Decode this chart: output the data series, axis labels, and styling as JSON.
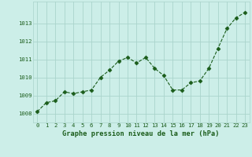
{
  "x": [
    0,
    1,
    2,
    3,
    4,
    5,
    6,
    7,
    8,
    9,
    10,
    11,
    12,
    13,
    14,
    15,
    16,
    17,
    18,
    19,
    20,
    21,
    22,
    23
  ],
  "y": [
    1008.1,
    1008.6,
    1008.7,
    1009.2,
    1009.1,
    1009.2,
    1009.3,
    1010.0,
    1010.4,
    1010.9,
    1011.1,
    1010.8,
    1011.1,
    1010.5,
    1010.1,
    1009.3,
    1009.3,
    1009.7,
    1009.8,
    1010.5,
    1011.6,
    1012.7,
    1013.3,
    1013.6
  ],
  "line_color": "#1a5c1a",
  "marker": "D",
  "marker_size": 2.5,
  "bg_color": "#cceee8",
  "grid_color": "#aad4cc",
  "xlabel": "Graphe pression niveau de la mer (hPa)",
  "xlabel_color": "#1a5c1a",
  "tick_color": "#1a5c1a",
  "ylim_min": 1007.5,
  "ylim_max": 1014.2,
  "xlim_min": -0.5,
  "xlim_max": 23.5,
  "yticks": [
    1008,
    1009,
    1010,
    1011,
    1012,
    1013
  ],
  "xticks": [
    0,
    1,
    2,
    3,
    4,
    5,
    6,
    7,
    8,
    9,
    10,
    11,
    12,
    13,
    14,
    15,
    16,
    17,
    18,
    19,
    20,
    21,
    22,
    23
  ],
  "tick_fontsize": 5.2,
  "xlabel_fontsize": 6.2
}
